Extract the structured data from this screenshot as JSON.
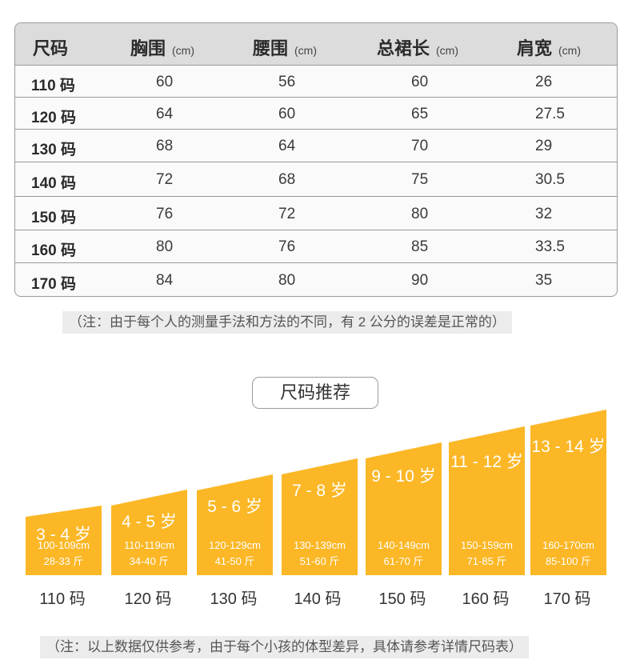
{
  "size_table": {
    "headers": [
      {
        "label": "尺码",
        "unit": ""
      },
      {
        "label": "胸围",
        "unit": "(cm)"
      },
      {
        "label": "腰围",
        "unit": "(cm)"
      },
      {
        "label": "总裙长",
        "unit": "(cm)"
      },
      {
        "label": "肩宽",
        "unit": "(cm)"
      }
    ],
    "rows": [
      [
        "110 码",
        "60",
        "56",
        "60",
        "26"
      ],
      [
        "120 码",
        "64",
        "60",
        "65",
        "27.5"
      ],
      [
        "130 码",
        "68",
        "64",
        "70",
        "29"
      ],
      [
        "140 码",
        "72",
        "68",
        "75",
        "30.5"
      ],
      [
        "150 码",
        "76",
        "72",
        "80",
        "32"
      ],
      [
        "160 码",
        "80",
        "76",
        "85",
        "33.5"
      ],
      [
        "170 码",
        "84",
        "80",
        "90",
        "35"
      ]
    ]
  },
  "note_measure": "（注：由于每个人的测量手法和方法的不同，有 2 公分的误差是正常的）",
  "recommend_title": "尺码推荐",
  "recommendations": [
    {
      "age": "3 - 4 岁",
      "height": "100-109cm",
      "weight": "28-33 斤",
      "size": "110 码"
    },
    {
      "age": "4 - 5 岁",
      "height": "110-119cm",
      "weight": "34-40 斤",
      "size": "120 码"
    },
    {
      "age": "5 - 6 岁",
      "height": "120-129cm",
      "weight": "41-50 斤",
      "size": "130 码"
    },
    {
      "age": "7 - 8 岁",
      "height": "130-139cm",
      "weight": "51-60 斤",
      "size": "140 码"
    },
    {
      "age": "9 - 10 岁",
      "height": "140-149cm",
      "weight": "61-70 斤",
      "size": "150 码"
    },
    {
      "age": "11 - 12 岁",
      "height": "150-159cm",
      "weight": "71-85 斤",
      "size": "160 码"
    },
    {
      "age": "13 - 14 岁",
      "height": "160-170cm",
      "weight": "85-100 斤",
      "size": "170 码"
    }
  ],
  "colors": {
    "bar": "#fbb726",
    "header_bg": "#dcdcdc",
    "text": "#333333"
  },
  "note_reference": "（注：以上数据仅供参考，由于每个小孩的体型差异，具体请参考详情尺码表）"
}
